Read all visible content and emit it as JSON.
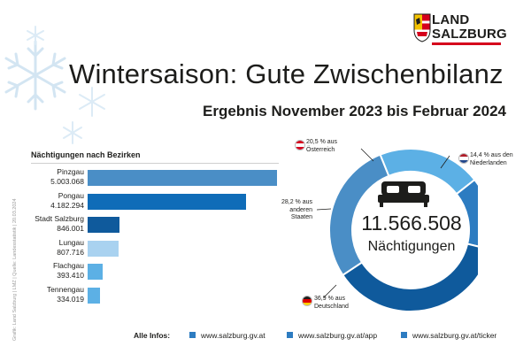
{
  "logo": {
    "line1": "LAND",
    "line2": "SALZBURG"
  },
  "title": "Wintersaison: Gute Zwischenbilanz",
  "subtitle": "Ergebnis November 2023 bis Februar 2024",
  "credit": "Grafik: Land Salzburg | LMZ | Quelle: Landesstatistik | 20.03.2024",
  "colors": {
    "dark_blue": "#0f5a9c",
    "mid_blue": "#2d7cc1",
    "steel_blue": "#4a8ec6",
    "light_blue": "#5cb0e5",
    "pale_blue": "#a9d2f0"
  },
  "chart_data": [
    {
      "type": "bar",
      "title": "Nächtigungen nach Bezirken",
      "orientation": "horizontal",
      "categories": [
        "Pinzgau",
        "Pongau",
        "Stadt Salzburg",
        "Lungau",
        "Flachgau",
        "Tennengau"
      ],
      "values": [
        5003068,
        4182294,
        846001,
        807716,
        393410,
        334019
      ],
      "value_labels": [
        "5.003.068",
        "4.182.294",
        "846.001",
        "807.716",
        "393.410",
        "334.019"
      ],
      "bar_colors": [
        "#4a8ec6",
        "#0f6cb8",
        "#0f5a9c",
        "#a9d2f0",
        "#5cb0e5",
        "#5cb0e5"
      ]
    },
    {
      "type": "pie",
      "donut": true,
      "total_label": "11.566.508",
      "total_caption": "Nächtigungen",
      "slices": [
        {
          "label": "20,5 % aus Österreich",
          "value": 20.5,
          "color": "#5cb0e5",
          "flag": "austria-flag-icon"
        },
        {
          "label": "14,4 % aus den Niederlanden",
          "value": 14.4,
          "color": "#2d7cc1",
          "flag": "netherlands-flag-icon"
        },
        {
          "label": "36,9 % aus Deutschland",
          "value": 36.9,
          "color": "#0f5a9c",
          "flag": "germany-flag-icon"
        },
        {
          "label": "28,2 % aus anderen Staaten",
          "value": 28.2,
          "color": "#4a8ec6",
          "flag": ""
        }
      ]
    }
  ],
  "callouts": {
    "austria": [
      "20,5 % aus",
      "Österreich"
    ],
    "netherlands": [
      "14,4 % aus den",
      "Niederlanden"
    ],
    "germany": [
      "36,9 % aus",
      "Deutschland"
    ],
    "others": [
      "28,2 % aus",
      "anderen",
      "Staaten"
    ]
  },
  "footer": {
    "label": "Alle Infos:",
    "links": [
      "www.salzburg.gv.at",
      "www.salzburg.gv.at/app",
      "www.salzburg.gv.at/ticker"
    ]
  }
}
